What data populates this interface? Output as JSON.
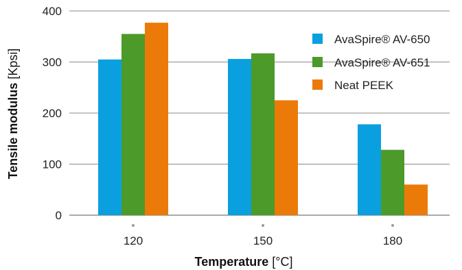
{
  "chart_data": {
    "type": "bar",
    "categories": [
      "120",
      "150",
      "180"
    ],
    "series": [
      {
        "name": "AvaSpire® AV-650",
        "color": "#0aa0e0",
        "values": [
          305,
          306,
          178
        ]
      },
      {
        "name": "AvaSpire® AV-651",
        "color": "#4c9a2a",
        "values": [
          355,
          317,
          128
        ]
      },
      {
        "name": "Neat PEEK",
        "color": "#ec7a08",
        "values": [
          377,
          225,
          60
        ]
      }
    ],
    "ylim": [
      0,
      400
    ],
    "yticks": [
      0,
      100,
      200,
      300,
      400
    ],
    "xlabel": {
      "bold": "Temperature",
      "unit": " [°C]"
    },
    "ylabel": {
      "bold": "Tensile modulus",
      "unit": " [Kpsi]"
    },
    "grid": true,
    "legend_position": "top-right"
  }
}
